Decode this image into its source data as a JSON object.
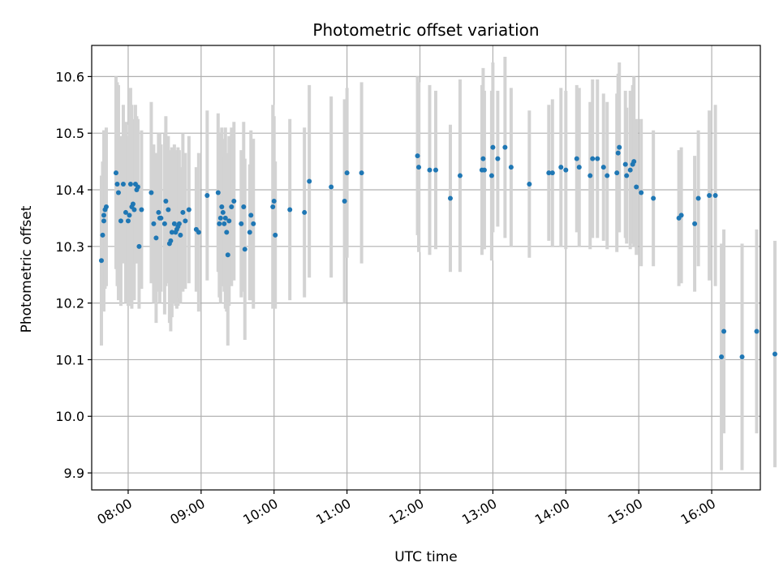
{
  "chart_data": {
    "type": "scatter",
    "title": "Photometric offset variation",
    "xlabel": "UTC time",
    "ylabel": "Photometric offset",
    "x_axis_type": "time",
    "xlim": [
      "07:30",
      "16:40"
    ],
    "ylim": [
      9.87,
      10.655
    ],
    "x_ticks": [
      "08:00",
      "09:00",
      "10:00",
      "11:00",
      "12:00",
      "13:00",
      "14:00",
      "15:00",
      "16:00"
    ],
    "y_ticks": [
      9.9,
      10.0,
      10.1,
      10.2,
      10.3,
      10.4,
      10.5,
      10.6
    ],
    "y_tick_labels": [
      "9.9",
      "10.0",
      "10.1",
      "10.2",
      "10.3",
      "10.4",
      "10.5",
      "10.6"
    ],
    "grid": true,
    "marker_color": "#1f77b4",
    "errorbar_color": "#d3d3d3",
    "series": [
      {
        "x": [
          "07:38",
          "07:39",
          "07:40",
          "07:40",
          "07:41",
          "07:42",
          "07:50",
          "07:51",
          "07:52",
          "07:54",
          "07:56",
          "07:58",
          "08:00",
          "08:01",
          "08:02",
          "08:03",
          "08:04",
          "08:05",
          "08:06",
          "08:07",
          "08:08",
          "08:09",
          "08:11",
          "08:19",
          "08:21",
          "08:23",
          "08:25",
          "08:26",
          "08:27",
          "08:30",
          "08:31",
          "08:33",
          "08:34",
          "08:35",
          "08:36",
          "08:38",
          "08:39",
          "08:40",
          "08:41",
          "08:42",
          "08:43",
          "08:45",
          "08:47",
          "08:50",
          "08:56",
          "08:58",
          "09:05",
          "09:14",
          "09:15",
          "09:16",
          "09:17",
          "09:18",
          "09:19",
          "09:20",
          "09:21",
          "09:22",
          "09:23",
          "09:25",
          "09:27",
          "09:33",
          "09:35",
          "09:36",
          "09:40",
          "09:41",
          "09:43",
          "09:59",
          "10:00",
          "10:01",
          "10:13",
          "10:25",
          "10:29",
          "10:47",
          "10:58",
          "11:00",
          "11:12",
          "11:58",
          "11:59",
          "12:08",
          "12:13",
          "12:25",
          "12:33",
          "12:51",
          "12:52",
          "12:53",
          "12:59",
          "13:00",
          "13:04",
          "13:10",
          "13:15",
          "13:30",
          "13:46",
          "13:49",
          "13:56",
          "14:00",
          "14:09",
          "14:11",
          "14:20",
          "14:22",
          "14:26",
          "14:31",
          "14:34",
          "14:42",
          "14:43",
          "14:44",
          "14:49",
          "14:50",
          "14:53",
          "14:55",
          "14:56",
          "14:58",
          "15:02",
          "15:12",
          "15:33",
          "15:35",
          "15:46",
          "15:49",
          "15:58",
          "16:03",
          "16:08",
          "16:10",
          "16:25",
          "16:37",
          "16:52"
        ],
        "y": [
          10.275,
          10.32,
          10.345,
          10.355,
          10.365,
          10.37,
          10.43,
          10.41,
          10.395,
          10.345,
          10.41,
          10.36,
          10.345,
          10.355,
          10.41,
          10.37,
          10.375,
          10.365,
          10.41,
          10.4,
          10.405,
          10.3,
          10.365,
          10.395,
          10.34,
          10.315,
          10.36,
          10.35,
          10.35,
          10.34,
          10.38,
          10.365,
          10.305,
          10.31,
          10.325,
          10.34,
          10.325,
          10.33,
          10.335,
          10.34,
          10.32,
          10.36,
          10.345,
          10.365,
          10.33,
          10.325,
          10.39,
          10.395,
          10.34,
          10.35,
          10.37,
          10.36,
          10.34,
          10.35,
          10.325,
          10.285,
          10.345,
          10.37,
          10.38,
          10.34,
          10.37,
          10.295,
          10.325,
          10.355,
          10.34,
          10.37,
          10.38,
          10.32,
          10.365,
          10.36,
          10.415,
          10.405,
          10.38,
          10.43,
          10.43,
          10.46,
          10.44,
          10.435,
          10.435,
          10.385,
          10.425,
          10.435,
          10.455,
          10.435,
          10.425,
          10.475,
          10.455,
          10.475,
          10.44,
          10.41,
          10.43,
          10.43,
          10.44,
          10.435,
          10.455,
          10.44,
          10.425,
          10.455,
          10.455,
          10.44,
          10.425,
          10.43,
          10.465,
          10.475,
          10.445,
          10.425,
          10.435,
          10.445,
          10.45,
          10.405,
          10.395,
          10.385,
          10.35,
          10.355,
          10.34,
          10.385,
          10.39,
          10.39,
          10.105,
          10.15,
          10.105,
          10.15,
          10.11
        ],
        "yerr": [
          0.15,
          0.13,
          0.16,
          0.15,
          0.14,
          0.14,
          0.17,
          0.18,
          0.19,
          0.15,
          0.14,
          0.16,
          0.15,
          0.16,
          0.17,
          0.18,
          0.14,
          0.16,
          0.14,
          0.13,
          0.12,
          0.11,
          0.14,
          0.16,
          0.14,
          0.15,
          0.14,
          0.15,
          0.13,
          0.16,
          0.15,
          0.13,
          0.14,
          0.16,
          0.15,
          0.14,
          0.13,
          0.14,
          0.14,
          0.13,
          0.12,
          0.14,
          0.12,
          0.13,
          0.11,
          0.14,
          0.15,
          0.14,
          0.13,
          0.15,
          0.14,
          0.13,
          0.12,
          0.16,
          0.14,
          0.16,
          0.15,
          0.14,
          0.14,
          0.13,
          0.15,
          0.16,
          0.12,
          0.15,
          0.15,
          0.18,
          0.15,
          0.13,
          0.16,
          0.15,
          0.17,
          0.16,
          0.18,
          0.15,
          0.16,
          0.14,
          0.15,
          0.15,
          0.14,
          0.13,
          0.17,
          0.15,
          0.16,
          0.14,
          0.15,
          0.15,
          0.12,
          0.16,
          0.14,
          0.13,
          0.12,
          0.13,
          0.14,
          0.14,
          0.13,
          0.14,
          0.13,
          0.14,
          0.14,
          0.13,
          0.13,
          0.14,
          0.14,
          0.15,
          0.13,
          0.12,
          0.14,
          0.14,
          0.15,
          0.12,
          0.13,
          0.12,
          0.12,
          0.12,
          0.12,
          0.12,
          0.15,
          0.16,
          0.2,
          0.18,
          0.2,
          0.18,
          0.2
        ]
      }
    ]
  }
}
